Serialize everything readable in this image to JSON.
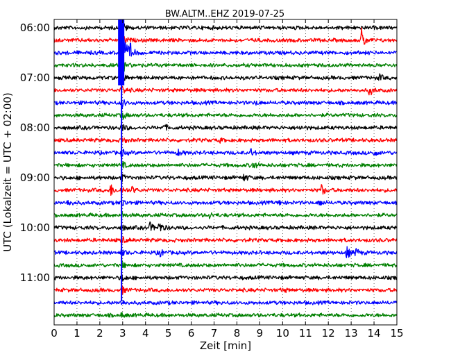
{
  "chart_data": {
    "type": "line",
    "title": "BW.ALTM..EHZ 2019-07-25",
    "xlabel": "Zeit  [min]",
    "ylabel": "UTC (Lokalzeit = UTC + 02:00)",
    "xlim": [
      0,
      15
    ],
    "x_ticks": [
      "0",
      "1",
      "2",
      "3",
      "4",
      "5",
      "6",
      "7",
      "8",
      "9",
      "10",
      "11",
      "12",
      "13",
      "14",
      "15"
    ],
    "y_ticks": [
      "06:00",
      "07:00",
      "08:00",
      "09:00",
      "10:00",
      "11:00"
    ],
    "grid": "vertical-dotted",
    "trace_interval_minutes": 15,
    "traces": [
      {
        "start": "06:00",
        "color": "#000000",
        "events": [
          [
            2.95,
            14
          ]
        ]
      },
      {
        "start": "06:15",
        "color": "#ff0000",
        "events": [
          [
            2.95,
            14
          ],
          [
            13.45,
            16
          ]
        ]
      },
      {
        "start": "06:30",
        "color": "#0000ff",
        "events": [
          [
            2.95,
            60
          ],
          [
            3.3,
            14
          ]
        ]
      },
      {
        "start": "06:45",
        "color": "#008000",
        "events": [
          [
            2.95,
            16
          ]
        ]
      },
      {
        "start": "07:00",
        "color": "#000000",
        "events": [
          [
            2.95,
            10
          ],
          [
            14.2,
            5
          ]
        ]
      },
      {
        "start": "07:15",
        "color": "#ff0000",
        "events": [
          [
            2.95,
            8
          ],
          [
            13.8,
            8
          ]
        ]
      },
      {
        "start": "07:30",
        "color": "#0000ff",
        "events": [
          [
            2.95,
            8
          ],
          [
            8.8,
            3
          ]
        ]
      },
      {
        "start": "07:45",
        "color": "#008000",
        "events": [
          [
            2.95,
            7
          ]
        ]
      },
      {
        "start": "08:00",
        "color": "#000000",
        "events": [
          [
            2.95,
            6
          ],
          [
            4.8,
            4
          ],
          [
            10.7,
            3
          ]
        ]
      },
      {
        "start": "08:15",
        "color": "#ff0000",
        "events": [
          [
            2.95,
            5
          ],
          [
            7.2,
            3
          ]
        ]
      },
      {
        "start": "08:30",
        "color": "#0000ff",
        "events": [
          [
            2.95,
            5
          ],
          [
            5.4,
            5
          ],
          [
            8.6,
            5
          ],
          [
            14.0,
            4
          ]
        ]
      },
      {
        "start": "08:45",
        "color": "#008000",
        "events": [
          [
            2.95,
            5
          ],
          [
            8.7,
            6
          ]
        ]
      },
      {
        "start": "09:00",
        "color": "#000000",
        "events": [
          [
            2.95,
            5
          ],
          [
            8.3,
            6
          ]
        ]
      },
      {
        "start": "09:15",
        "color": "#ff0000",
        "events": [
          [
            2.45,
            10
          ],
          [
            2.95,
            5
          ],
          [
            3.4,
            5
          ],
          [
            11.7,
            8
          ]
        ]
      },
      {
        "start": "09:30",
        "color": "#0000ff",
        "events": [
          [
            0.6,
            5
          ],
          [
            2.95,
            6
          ],
          [
            9.8,
            4
          ],
          [
            11.6,
            5
          ]
        ]
      },
      {
        "start": "09:45",
        "color": "#008000",
        "events": [
          [
            2.95,
            4
          ],
          [
            6.8,
            4
          ]
        ]
      },
      {
        "start": "10:00",
        "color": "#000000",
        "events": [
          [
            2.95,
            5
          ],
          [
            4.2,
            7
          ],
          [
            4.6,
            9
          ]
        ]
      },
      {
        "start": "10:15",
        "color": "#ff0000",
        "events": [
          [
            2.95,
            5
          ]
        ]
      },
      {
        "start": "10:30",
        "color": "#0000ff",
        "events": [
          [
            2.95,
            5
          ],
          [
            4.6,
            7
          ],
          [
            12.8,
            9
          ],
          [
            13.2,
            6
          ]
        ]
      },
      {
        "start": "10:45",
        "color": "#008000",
        "events": [
          [
            2.95,
            5
          ]
        ]
      },
      {
        "start": "11:00",
        "color": "#000000",
        "events": [
          [
            2.95,
            6
          ]
        ]
      },
      {
        "start": "11:15",
        "color": "#ff0000",
        "events": [
          [
            2.95,
            6
          ],
          [
            10.0,
            3
          ]
        ]
      },
      {
        "start": "11:30",
        "color": "#0000ff",
        "events": [
          [
            2.95,
            4
          ]
        ]
      },
      {
        "start": "11:45",
        "color": "#008000",
        "events": [
          [
            2.95,
            3
          ]
        ]
      }
    ]
  }
}
